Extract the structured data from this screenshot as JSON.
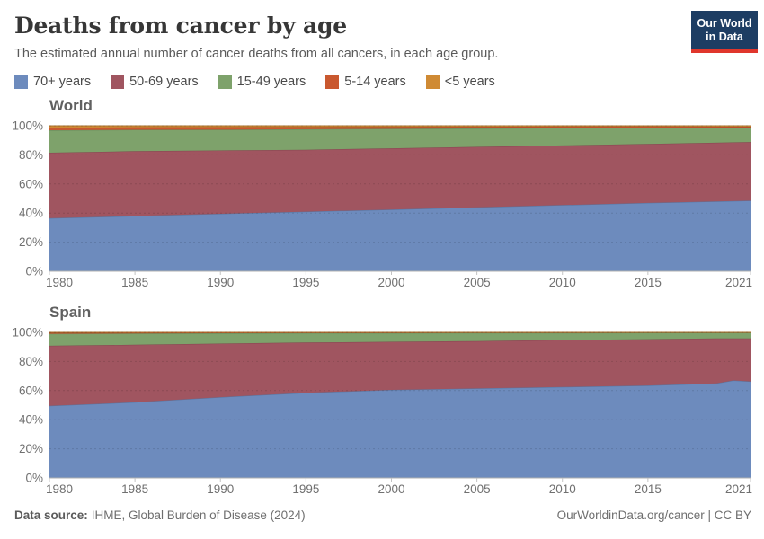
{
  "header": {
    "title": "Deaths from cancer by age",
    "subtitle": "The estimated annual number of cancer deaths from all cancers, in each age group.",
    "logo": {
      "line1": "Our World",
      "line2": "in Data",
      "bg_color": "#1d3d63",
      "bar_color": "#e0362c"
    }
  },
  "legend": {
    "items": [
      {
        "label": "70+ years",
        "color": "#6d8bbd"
      },
      {
        "label": "50-69 years",
        "color": "#a05560"
      },
      {
        "label": "15-49 years",
        "color": "#7ea26b"
      },
      {
        "label": "5-14 years",
        "color": "#c9582f"
      },
      {
        "label": "<5 years",
        "color": "#cf8a34"
      }
    ]
  },
  "footer": {
    "source_label": "Data source:",
    "source_text": "IHME, Global Burden of Disease (2024)",
    "right_text": "OurWorldinData.org/cancer | CC BY"
  },
  "chart_data": [
    {
      "type": "area",
      "stacked": true,
      "normalized": "percent-share",
      "title": "World",
      "x": [
        1980,
        1985,
        1990,
        1995,
        2000,
        2005,
        2010,
        2015,
        2021
      ],
      "series": [
        {
          "name": "70+ years",
          "color": "#6d8bbd",
          "values": [
            36.5,
            38.0,
            39.5,
            41.0,
            42.5,
            44.0,
            45.5,
            47.0,
            48.5
          ]
        },
        {
          "name": "50-69 years",
          "color": "#a05560",
          "values": [
            45.0,
            44.5,
            43.5,
            42.5,
            42.0,
            41.5,
            41.0,
            40.5,
            40.3
          ]
        },
        {
          "name": "15-49 years",
          "color": "#7ea26b",
          "values": [
            15.4,
            14.7,
            14.3,
            14.1,
            13.4,
            12.7,
            12.0,
            11.2,
            9.9
          ]
        },
        {
          "name": "5-14 years",
          "color": "#c9582f",
          "values": [
            1.8,
            1.7,
            1.7,
            1.5,
            1.3,
            1.15,
            0.95,
            0.8,
            0.7
          ]
        },
        {
          "name": "<5 years",
          "color": "#cf8a34",
          "values": [
            1.3,
            1.1,
            1.0,
            0.9,
            0.8,
            0.65,
            0.55,
            0.5,
            0.6
          ]
        }
      ],
      "ylim": [
        0,
        100
      ],
      "yticks": [
        0,
        20,
        40,
        60,
        80,
        100
      ],
      "ytick_suffix": "%",
      "xticks": [
        1980,
        1985,
        1990,
        1995,
        2000,
        2005,
        2010,
        2015,
        2021
      ],
      "grid": "dashed",
      "legend_position": "shared-top"
    },
    {
      "type": "area",
      "stacked": true,
      "normalized": "percent-share",
      "title": "Spain",
      "x": [
        1980,
        1985,
        1990,
        1995,
        2000,
        2005,
        2010,
        2015,
        2019,
        2020,
        2021
      ],
      "series": [
        {
          "name": "70+ years",
          "color": "#6d8bbd",
          "values": [
            49.5,
            52.0,
            55.5,
            58.5,
            60.5,
            61.5,
            62.5,
            63.5,
            65.0,
            67.0,
            66.3
          ]
        },
        {
          "name": "50-69 years",
          "color": "#a05560",
          "values": [
            41.3,
            39.5,
            36.8,
            34.5,
            33.0,
            32.5,
            32.3,
            31.8,
            30.8,
            28.8,
            29.5
          ]
        },
        {
          "name": "15-49 years",
          "color": "#7ea26b",
          "values": [
            8.2,
            7.7,
            7.1,
            6.5,
            6.05,
            5.6,
            4.85,
            4.4,
            3.92,
            3.95,
            3.95
          ]
        },
        {
          "name": "5-14 years",
          "color": "#c9582f",
          "values": [
            0.7,
            0.6,
            0.45,
            0.4,
            0.35,
            0.32,
            0.28,
            0.24,
            0.23,
            0.2,
            0.2
          ]
        },
        {
          "name": "<5 years",
          "color": "#cf8a34",
          "values": [
            0.3,
            0.2,
            0.15,
            0.1,
            0.1,
            0.08,
            0.07,
            0.06,
            0.05,
            0.05,
            0.05
          ]
        }
      ],
      "ylim": [
        0,
        100
      ],
      "yticks": [
        0,
        20,
        40,
        60,
        80,
        100
      ],
      "ytick_suffix": "%",
      "xticks": [
        1980,
        1985,
        1990,
        1995,
        2000,
        2005,
        2010,
        2015,
        2021
      ],
      "grid": "dashed",
      "legend_position": "shared-top"
    }
  ],
  "style": {
    "axis_text_color": "#707070",
    "baseline_color": "#b0b0b0",
    "tick_color": "#c4c4c4",
    "grid_color": "rgba(0,0,0,0.13)"
  }
}
